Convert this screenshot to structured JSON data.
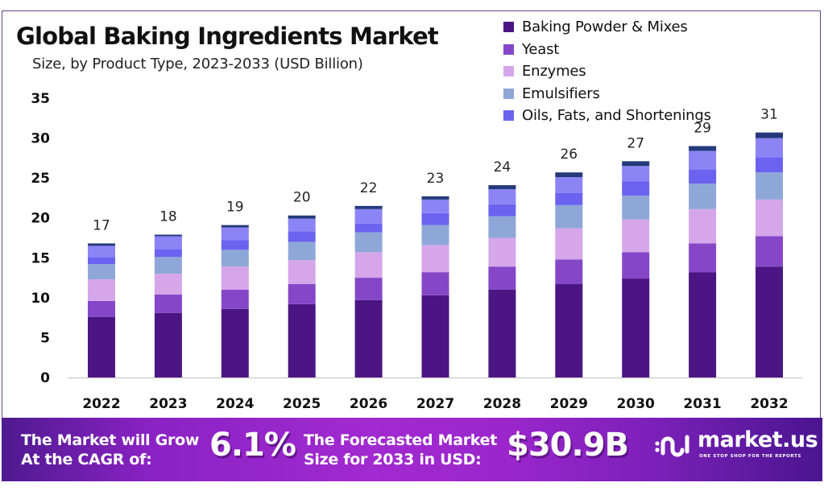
{
  "chart_data": {
    "type": "bar",
    "stacked": true,
    "title": "Global Baking Ingredients Market",
    "subtitle": "Size, by Product Type, 2023-2033 (USD Billion)",
    "xlabel": "",
    "ylabel": "",
    "ylim": [
      0,
      35
    ],
    "yticks": [
      0,
      5,
      10,
      15,
      20,
      25,
      30,
      35
    ],
    "grid": false,
    "legend_position": "top-right",
    "categories": [
      "2022",
      "2023",
      "2024",
      "2025",
      "2026",
      "2027",
      "2028",
      "2029",
      "2030",
      "2031",
      "2032"
    ],
    "series": [
      {
        "name": "Baking Powder & Mixes",
        "color": "#4b1683",
        "values": [
          7.6,
          8.1,
          8.6,
          9.2,
          9.7,
          10.3,
          11.0,
          11.7,
          12.4,
          13.2,
          13.9
        ],
        "in_legend": true
      },
      {
        "name": "Yeast",
        "color": "#8547c8",
        "values": [
          2.0,
          2.3,
          2.4,
          2.5,
          2.8,
          2.9,
          2.9,
          3.1,
          3.3,
          3.6,
          3.8
        ],
        "in_legend": true
      },
      {
        "name": "Enzymes",
        "color": "#d5a6ea",
        "values": [
          2.7,
          2.6,
          2.9,
          3.0,
          3.2,
          3.4,
          3.6,
          3.9,
          4.1,
          4.3,
          4.6
        ],
        "in_legend": true
      },
      {
        "name": "Emulsifiers",
        "color": "#8fa7d8",
        "values": [
          1.9,
          2.1,
          2.1,
          2.3,
          2.5,
          2.5,
          2.7,
          2.9,
          3.0,
          3.2,
          3.4
        ],
        "in_legend": true
      },
      {
        "name": "Oils, Fats, and Shortenings",
        "color": "#6b63f0",
        "values": [
          0.9,
          1.0,
          1.2,
          1.3,
          1.1,
          1.5,
          1.5,
          1.5,
          1.8,
          1.8,
          1.9
        ],
        "in_legend": true
      },
      {
        "name": "Other (unlabeled)",
        "color": "#8c84f5",
        "values": [
          1.4,
          1.6,
          1.6,
          1.6,
          1.8,
          1.7,
          1.9,
          2.0,
          1.9,
          2.3,
          2.4
        ],
        "in_legend": false
      },
      {
        "name": "Other (unlabeled, top)",
        "color": "#243a7a",
        "values": [
          0.3,
          0.2,
          0.3,
          0.4,
          0.4,
          0.4,
          0.5,
          0.6,
          0.6,
          0.6,
          0.7
        ],
        "in_legend": false
      }
    ],
    "totals_labels": [
      "17",
      "18",
      "19",
      "20",
      "22",
      "23",
      "24",
      "26",
      "27",
      "29",
      "31"
    ]
  },
  "legend": [
    {
      "label": "Baking Powder & Mixes",
      "color": "#4b1683"
    },
    {
      "label": "Yeast",
      "color": "#8547c8"
    },
    {
      "label": "Enzymes",
      "color": "#d5a6ea"
    },
    {
      "label": "Emulsifiers",
      "color": "#8fa7d8"
    },
    {
      "label": "Oils, Fats, and Shortenings",
      "color": "#6b63f0"
    }
  ],
  "banner": {
    "cagr_text_line1": "The Market will Grow",
    "cagr_text_line2": "At the CAGR of:",
    "cagr_value": "6.1%",
    "forecast_text_line1": "The Forecasted Market",
    "forecast_text_line2": "Size for 2033 in USD:",
    "forecast_value": "$30.9B",
    "brand_name": "market.us",
    "brand_tagline": "ONE STOP SHOP FOR THE REPORTS"
  }
}
